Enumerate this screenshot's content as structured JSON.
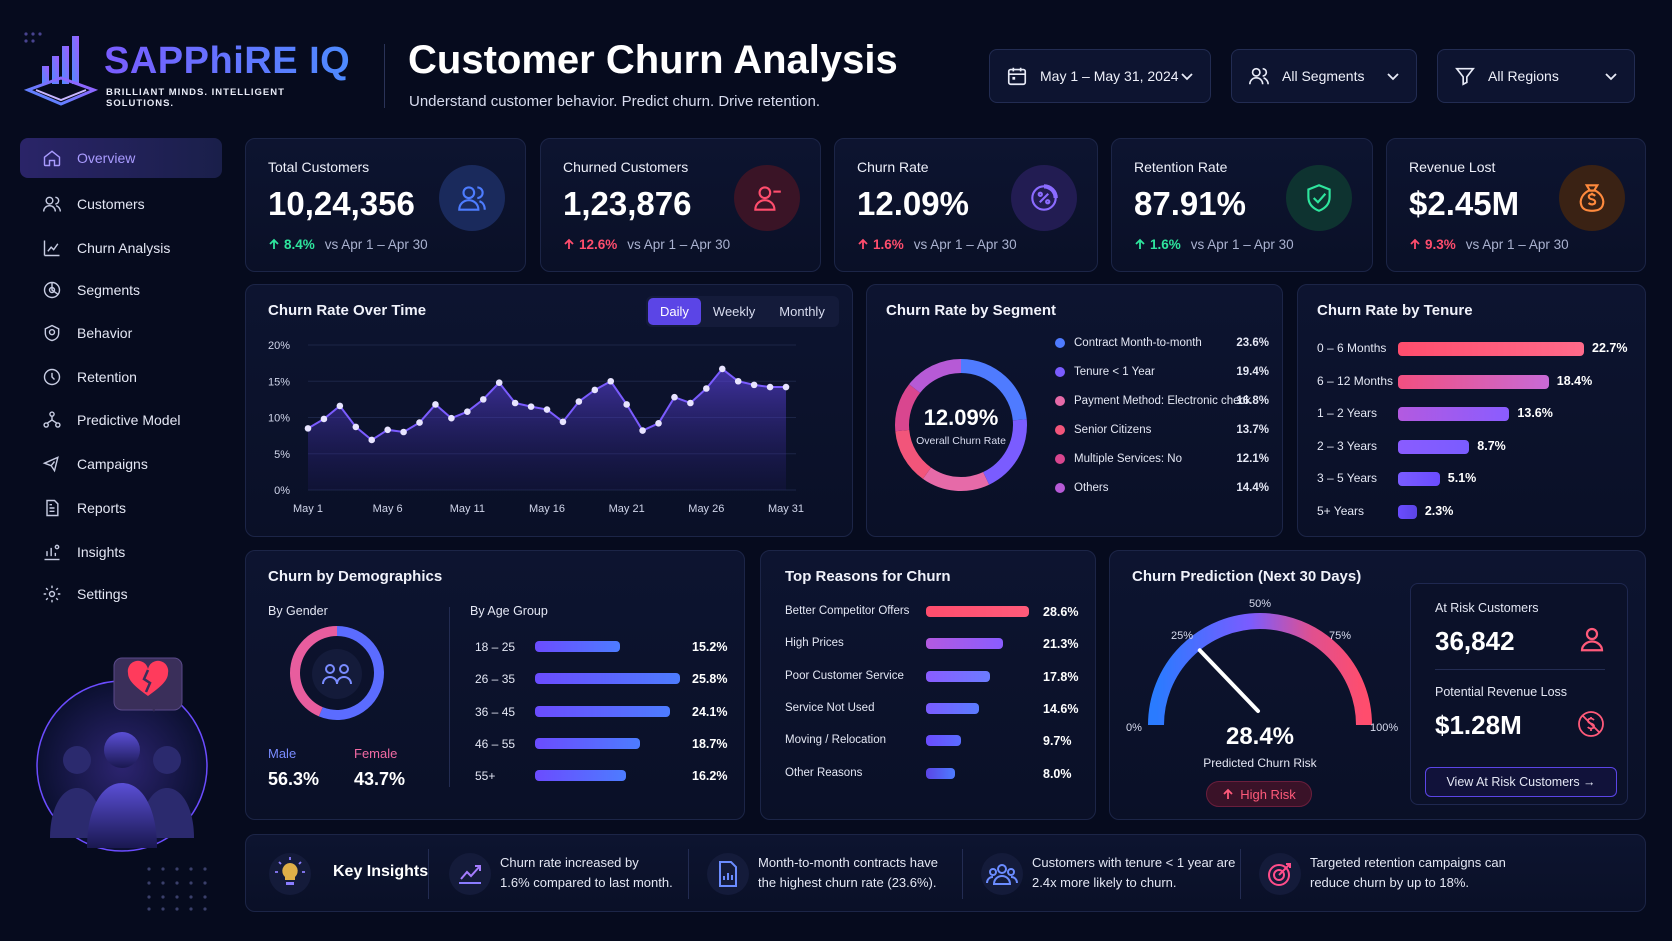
{
  "brand": {
    "name": "SAPPhiRE IQ",
    "tagline": "BRILLIANT MINDS. INTELLIGENT SOLUTIONS."
  },
  "header": {
    "title": "Customer Churn Analysis",
    "subtitle": "Understand customer behavior. Predict churn. Drive retention.",
    "filters": {
      "date": "May 1 – May 31, 2024",
      "segment": "All Segments",
      "region": "All Regions"
    }
  },
  "sidebar": {
    "items": [
      {
        "label": "Overview",
        "icon": "home-icon"
      },
      {
        "label": "Customers",
        "icon": "users-icon"
      },
      {
        "label": "Churn Analysis",
        "icon": "analysis-icon"
      },
      {
        "label": "Segments",
        "icon": "segments-icon"
      },
      {
        "label": "Behavior",
        "icon": "behavior-icon"
      },
      {
        "label": "Retention",
        "icon": "retention-icon"
      },
      {
        "label": "Predictive Model",
        "icon": "model-icon"
      },
      {
        "label": "Campaigns",
        "icon": "campaign-icon"
      },
      {
        "label": "Reports",
        "icon": "report-icon"
      },
      {
        "label": "Insights",
        "icon": "insights-icon"
      },
      {
        "label": "Settings",
        "icon": "gear-icon"
      }
    ],
    "active": "Overview"
  },
  "kpis": [
    {
      "label": "Total Customers",
      "value": "10,24,356",
      "change": "8.4%",
      "direction": "up",
      "positive": true,
      "compare": "vs Apr 1 – Apr 30",
      "icon": "users-icon",
      "accent": "#4d7cff"
    },
    {
      "label": "Churned Customers",
      "value": "1,23,876",
      "change": "12.6%",
      "direction": "up",
      "positive": false,
      "compare": "vs Apr 1 – Apr 30",
      "icon": "user-minus-icon",
      "accent": "#ff4d6d"
    },
    {
      "label": "Churn Rate",
      "value": "12.09%",
      "change": "1.6%",
      "direction": "up",
      "positive": false,
      "compare": "vs Apr 1 – Apr 30",
      "icon": "percent-icon",
      "accent": "#8b6bff"
    },
    {
      "label": "Retention Rate",
      "value": "87.91%",
      "change": "1.6%",
      "direction": "up",
      "positive": true,
      "compare": "vs Apr 1 – Apr 30",
      "icon": "shield-check-icon",
      "accent": "#2ee59d"
    },
    {
      "label": "Revenue Lost",
      "value": "$2.45M",
      "change": "9.3%",
      "direction": "up",
      "positive": false,
      "compare": "vs Apr 1 – Apr 30",
      "icon": "money-bag-icon",
      "accent": "#ff8a3d"
    }
  ],
  "churn_over_time": {
    "title": "Churn Rate Over Time",
    "toggles": [
      "Daily",
      "Weekly",
      "Monthly"
    ],
    "active_toggle": "Daily",
    "chart_data": {
      "type": "area",
      "x_ticks": [
        "May 1",
        "May 6",
        "May 11",
        "May 16",
        "May 21",
        "May 26",
        "May 31"
      ],
      "y_ticks": [
        "20%",
        "15%",
        "10%",
        "5%",
        "0%"
      ],
      "ylim": [
        0,
        20
      ],
      "x": [
        1,
        2,
        3,
        4,
        5,
        6,
        7,
        8,
        9,
        10,
        11,
        12,
        13,
        14,
        15,
        16,
        17,
        18,
        19,
        20,
        21,
        22,
        23,
        24,
        25,
        26,
        27,
        28,
        29,
        30,
        31
      ],
      "values": [
        8.5,
        9.8,
        11.6,
        8.7,
        6.9,
        8.3,
        8.0,
        9.3,
        11.8,
        9.9,
        10.8,
        12.5,
        14.8,
        12.0,
        11.5,
        11.1,
        9.4,
        12.2,
        13.8,
        15.0,
        11.8,
        8.2,
        9.2,
        12.8,
        12.0,
        14.0,
        16.7,
        15.0,
        14.5,
        14.2,
        14.2
      ]
    }
  },
  "churn_by_segment": {
    "title": "Churn Rate by Segment",
    "center_value": "12.09%",
    "center_label": "Overall Churn Rate",
    "chart_data": {
      "type": "pie",
      "labels": [
        "Contract Month-to-month",
        "Tenure < 1 Year",
        "Payment Method: Electronic check",
        "Senior Citizens",
        "Multiple Services: No",
        "Others"
      ],
      "values": [
        23.6,
        19.4,
        16.8,
        13.7,
        12.1,
        14.4
      ],
      "display": [
        "23.6%",
        "19.4%",
        "16.8%",
        "13.7%",
        "12.1%",
        "14.4%"
      ],
      "colors": [
        "#4f7bff",
        "#7a5cff",
        "#e66aa8",
        "#f2557a",
        "#d9468f",
        "#b65ad6"
      ]
    }
  },
  "churn_by_tenure": {
    "title": "Churn Rate by Tenure",
    "chart_data": {
      "type": "bar",
      "categories": [
        "0 – 6 Months",
        "6 – 12 Months",
        "1 – 2 Years",
        "2 – 3 Years",
        "3 – 5 Years",
        "5+ Years"
      ],
      "values": [
        22.7,
        18.4,
        13.6,
        8.7,
        5.1,
        2.3
      ],
      "display": [
        "22.7%",
        "18.4%",
        "13.6%",
        "8.7%",
        "5.1%",
        "2.3%"
      ]
    }
  },
  "demographics": {
    "title": "Churn by Demographics",
    "gender_title": "By Gender",
    "age_title": "By Age Group",
    "gender": [
      {
        "label": "Male",
        "value": "56.3%",
        "share": 56.3,
        "color": "#5b6cff"
      },
      {
        "label": "Female",
        "value": "43.7%",
        "share": 43.7,
        "color": "#e85d9e"
      }
    ],
    "chart_data": {
      "type": "bar",
      "categories": [
        "18 – 25",
        "26 – 35",
        "36 – 45",
        "46 – 55",
        "55+"
      ],
      "values": [
        15.2,
        25.8,
        24.1,
        18.7,
        16.2
      ],
      "display": [
        "15.2%",
        "25.8%",
        "24.1%",
        "18.7%",
        "16.2%"
      ]
    }
  },
  "reasons": {
    "title": "Top Reasons for Churn",
    "chart_data": {
      "type": "bar",
      "categories": [
        "Better Competitor Offers",
        "High Prices",
        "Poor Customer Service",
        "Service Not Used",
        "Moving / Relocation",
        "Other Reasons"
      ],
      "values": [
        28.6,
        21.3,
        17.8,
        14.6,
        9.7,
        8.0
      ],
      "display": [
        "28.6%",
        "21.3%",
        "17.8%",
        "14.6%",
        "9.7%",
        "8.0%"
      ]
    }
  },
  "prediction": {
    "title": "Churn Prediction (Next 30 Days)",
    "gauge_value": "28.4%",
    "gauge_fraction": 0.284,
    "gauge_label": "Predicted Churn Risk",
    "risk_badge": "High Risk",
    "ticks": [
      "0%",
      "25%",
      "50%",
      "75%",
      "100%"
    ],
    "at_risk_label": "At Risk Customers",
    "at_risk_value": "36,842",
    "revenue_loss_label": "Potential Revenue Loss",
    "revenue_loss_value": "$1.28M",
    "cta": "View At Risk Customers →"
  },
  "insights": {
    "title": "Key Insights",
    "items": [
      {
        "line1": "Churn rate increased by",
        "line2": "1.6% compared to last month.",
        "icon": "trend-chart-icon"
      },
      {
        "line1": "Month-to-month contracts have",
        "line2": "the highest churn rate (23.6%).",
        "icon": "document-chart-icon"
      },
      {
        "line1": "Customers with tenure < 1 year are",
        "line2": "2.4x more likely to churn.",
        "icon": "group-icon"
      },
      {
        "line1": "Targeted retention campaigns can",
        "line2": "reduce churn by up to 18%.",
        "icon": "target-icon"
      }
    ]
  },
  "colors": {
    "bg": "#060b1e",
    "accent": "#6b4cff",
    "up_good": "#2ee59d",
    "up_bad": "#ff4d6d"
  }
}
